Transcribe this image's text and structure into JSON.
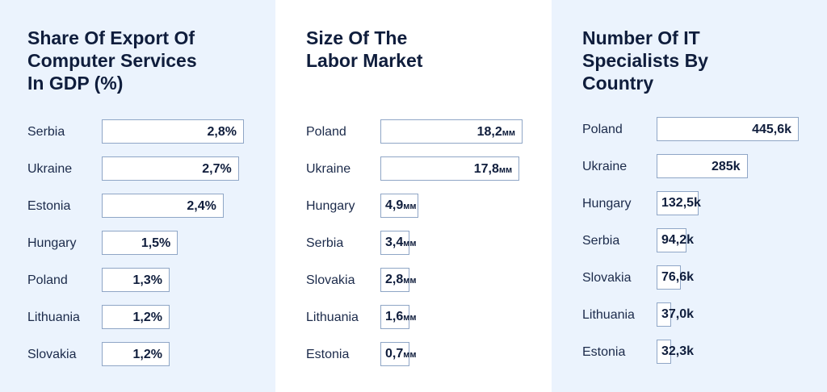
{
  "chart_data": [
    {
      "type": "bar",
      "orientation": "horizontal",
      "title": "Share Of Export Of\nComputer Services\nIn GDP (%)",
      "categories": [
        "Serbia",
        "Ukraine",
        "Estonia",
        "Hungary",
        "Poland",
        "Lithuania",
        "Slovakia"
      ],
      "values": [
        2.8,
        2.7,
        2.4,
        1.5,
        1.3,
        1.2,
        1.2
      ],
      "value_labels": [
        "2,8%",
        "2,7%",
        "2,4%",
        "1,5%",
        "1,3%",
        "1,2%",
        "1,2%"
      ],
      "units": [
        "",
        "",
        "",
        "",
        "",
        "",
        ""
      ],
      "xlim": [
        0,
        2.8
      ]
    },
    {
      "type": "bar",
      "orientation": "horizontal",
      "title": "Size Of The\nLabor Market",
      "categories": [
        "Poland",
        "Ukraine",
        "Hungary",
        "Serbia",
        "Slovakia",
        "Lithuania",
        "Estonia"
      ],
      "values": [
        18.2,
        17.8,
        4.9,
        3.4,
        2.8,
        1.6,
        0.7
      ],
      "value_labels": [
        "18,2",
        "17,8",
        "4,9",
        "3,4",
        "2,8",
        "1,6",
        "0,7"
      ],
      "units": [
        "мм",
        "мм",
        "мм",
        "мм",
        "мм",
        "мм",
        "мм"
      ],
      "xlim": [
        0,
        18.2
      ]
    },
    {
      "type": "bar",
      "orientation": "horizontal",
      "title": "Number Of IT\nSpecialists By\nCountry",
      "categories": [
        "Poland",
        "Ukraine",
        "Hungary",
        "Serbia",
        "Slovakia",
        "Lithuania",
        "Estonia"
      ],
      "values": [
        445.6,
        285,
        132.5,
        94.2,
        76.6,
        37.0,
        32.3
      ],
      "value_labels": [
        "445,6k",
        "285k",
        "132,5k",
        "94,2k",
        "76,6k",
        "37,0k",
        "32,3k"
      ],
      "units": [
        "",
        "",
        "",
        "",
        "",
        "",
        ""
      ],
      "xlim": [
        0,
        445.6
      ]
    }
  ],
  "colors": {
    "panel_tint": "#ebf3fd",
    "bar_fill": "#ffffff",
    "bar_border": "#8fa6c6",
    "text_dark": "#0f1d3c"
  }
}
